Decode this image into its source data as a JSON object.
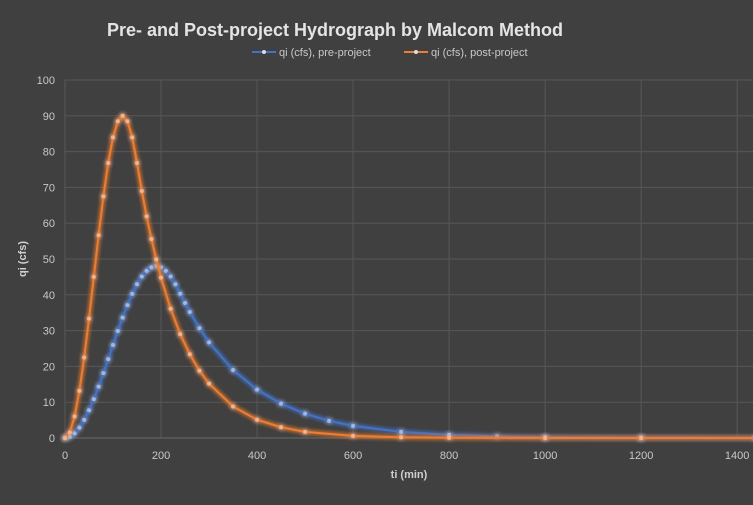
{
  "chart_data": {
    "type": "line",
    "title": "Pre- and Post-project Hydrograph by Malcom Method",
    "xlabel": "ti (min)",
    "ylabel": "qi (cfs)",
    "xlim": [
      0,
      1433
    ],
    "ylim": [
      0,
      100
    ],
    "xticks": [
      0,
      200,
      400,
      600,
      800,
      1000,
      1200,
      1400
    ],
    "yticks": [
      0,
      10,
      20,
      30,
      40,
      50,
      60,
      70,
      80,
      90,
      100
    ],
    "grid": true,
    "legend_position": "top",
    "series": [
      {
        "name": "qi (cfs), pre-project",
        "color": "#4472c4",
        "x": [
          0,
          10,
          20,
          30,
          40,
          50,
          60,
          70,
          80,
          90,
          100,
          110,
          120,
          130,
          140,
          150,
          160,
          170,
          180,
          190,
          200,
          210,
          220,
          230,
          240,
          250,
          260,
          280,
          300,
          350,
          400,
          450,
          500,
          550,
          600,
          700,
          800,
          900,
          1000,
          1200,
          1440
        ],
        "y": [
          0,
          0.33,
          1.3,
          2.89,
          5.06,
          7.74,
          10.87,
          14.36,
          18.11,
          22.02,
          25.98,
          29.89,
          33.64,
          37.13,
          40.26,
          42.94,
          45.11,
          46.7,
          47.67,
          48,
          47.67,
          46.7,
          45.11,
          42.94,
          40.3,
          37.7,
          35.2,
          30.7,
          26.7,
          19.0,
          13.5,
          9.6,
          6.8,
          4.8,
          3.4,
          1.7,
          0.87,
          0.44,
          0.22,
          0.06,
          0.01
        ]
      },
      {
        "name": "qi (cfs), post-project",
        "color": "#ed7d31",
        "x": [
          0,
          10,
          20,
          30,
          40,
          50,
          60,
          70,
          80,
          90,
          100,
          110,
          120,
          130,
          140,
          150,
          160,
          170,
          180,
          190,
          200,
          220,
          240,
          260,
          280,
          300,
          350,
          400,
          450,
          500,
          600,
          700,
          800,
          1000,
          1200,
          1440
        ],
        "y": [
          0,
          1.53,
          6.03,
          13.18,
          22.5,
          33.35,
          45,
          56.65,
          67.5,
          76.82,
          83.97,
          88.47,
          90,
          88.47,
          83.97,
          76.82,
          69.0,
          61.9,
          55.6,
          49.9,
          44.8,
          36.1,
          29.0,
          23.4,
          18.8,
          15.2,
          8.8,
          5.1,
          3.0,
          1.7,
          0.59,
          0.2,
          0.07,
          0.01,
          0,
          0
        ]
      }
    ]
  }
}
